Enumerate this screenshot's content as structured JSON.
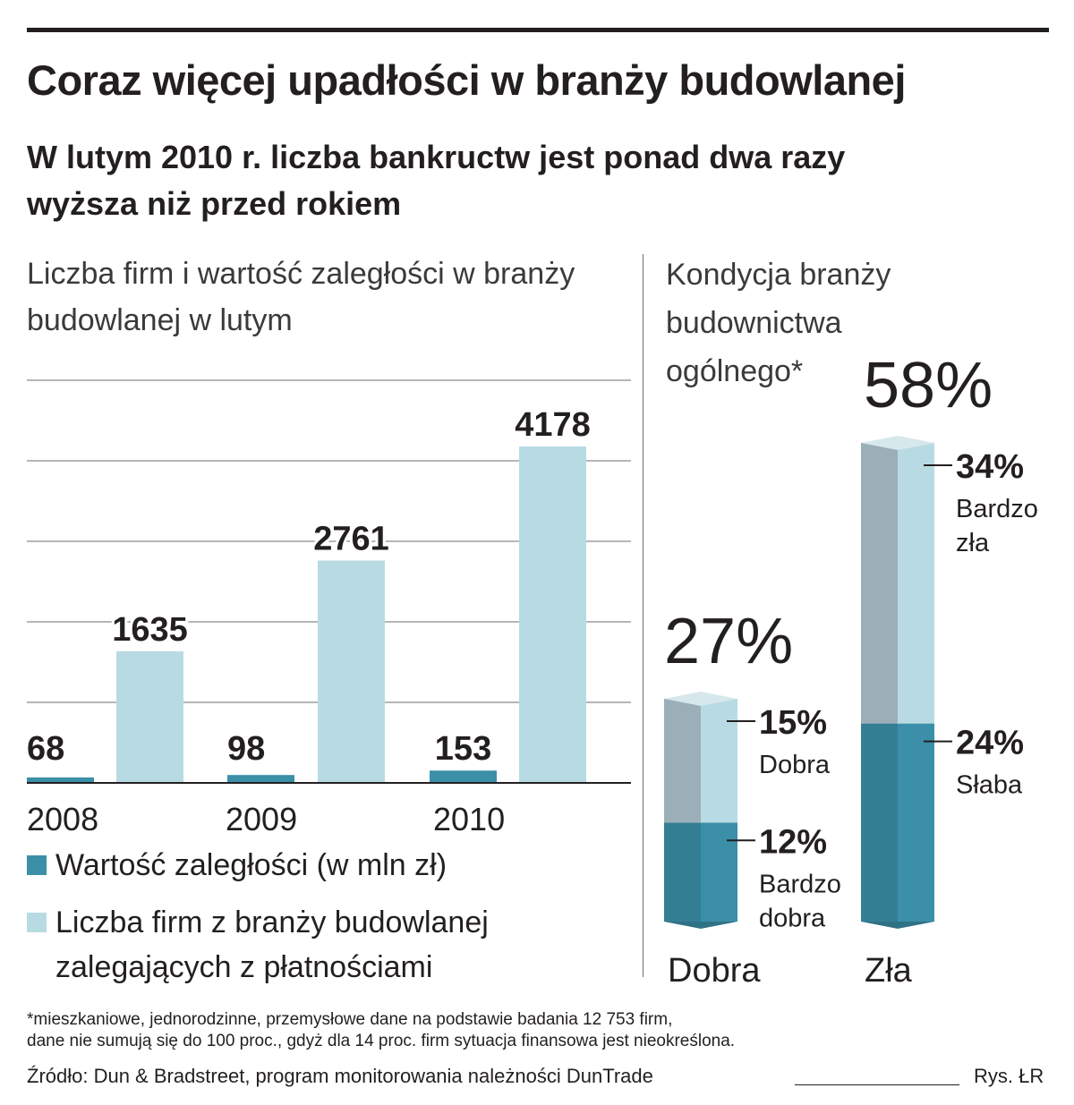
{
  "title": "Coraz więcej upadłości w branży budowlanej",
  "subtitle": "W lutym 2010 r. liczba bankructw jest ponad dwa razy wyższa niż przed rokiem",
  "left_chart_heading": "Liczba firm i wartość zaległości w branży budowlanej w lutym",
  "right_chart_heading": "Kondycja branży budownictwa ogólnego*",
  "legend": {
    "dark": "Wartość zaległości (w mln zł)",
    "light_line1": "Liczba firm z branży budowlanej",
    "light_line2": "zalegających z płatnościami"
  },
  "footnote_line1": "*mieszkaniowe, jednorodzinne, przemysłowe dane na podstawie badania 12 753 firm,",
  "footnote_line2": "dane nie sumują się do 100 proc., gdyż dla 14 proc. firm sytuacja finansowa jest nieokreślona.",
  "source": "Źródło: Dun & Bradstreet, program monitorowania należności DunTrade",
  "credit": "Rys. ŁR",
  "colors": {
    "dark_bar": "#3b8fa8",
    "light_bar": "#b8dbe3",
    "grey_bar": "#9bafb8",
    "text": "#231f20",
    "gridline": "#6d6e71"
  },
  "chart_data": [
    {
      "type": "bar",
      "categories": [
        "2008",
        "2009",
        "2010"
      ],
      "series": [
        {
          "name": "Wartość zaległości (w mln zł)",
          "values": [
            68,
            98,
            153
          ],
          "labels": [
            "68",
            "98",
            "153"
          ]
        },
        {
          "name": "Liczba firm z branży budowlanej zalegających z płatnościami",
          "values": [
            1635,
            2761,
            4178
          ],
          "labels": [
            "1635",
            "2761",
            "4178"
          ]
        }
      ],
      "ylim": [
        0,
        5000
      ],
      "grid": true,
      "legend_position": "bottom"
    },
    {
      "type": "bar",
      "stacked": true,
      "categories": [
        "Dobra",
        "Zła"
      ],
      "totals": [
        27,
        58
      ],
      "total_labels": [
        "27%",
        "58%"
      ],
      "segments": [
        [
          {
            "label": "Bardzo dobra",
            "value": 12,
            "value_label": "12%",
            "label_line1": "Bardzo",
            "label_line2": "dobra"
          },
          {
            "label": "Dobra",
            "value": 15,
            "value_label": "15%",
            "label_line1": "Dobra",
            "label_line2": ""
          }
        ],
        [
          {
            "label": "Słaba",
            "value": 24,
            "value_label": "24%",
            "label_line1": "Słaba",
            "label_line2": ""
          },
          {
            "label": "Bardzo zła",
            "value": 34,
            "value_label": "34%",
            "label_line1": "Bardzo",
            "label_line2": "zła"
          }
        ]
      ],
      "ylim": [
        0,
        58
      ]
    }
  ]
}
